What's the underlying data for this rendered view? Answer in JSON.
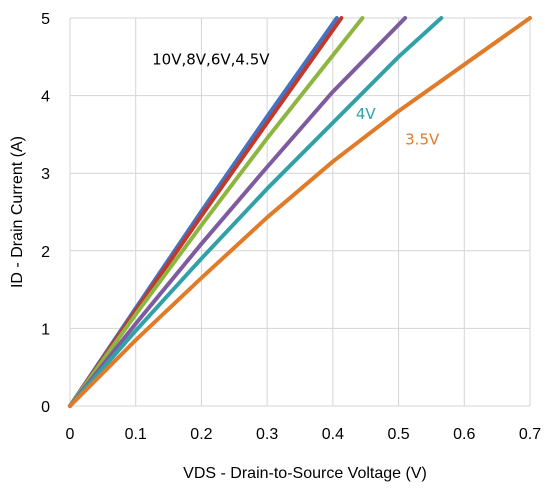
{
  "chart_data": {
    "type": "line",
    "title": "",
    "xlabel": "VDS - Drain-to-Source Voltage (V)",
    "ylabel": "ID - Drain Current (A)",
    "xlim": [
      0,
      0.7
    ],
    "ylim": [
      0,
      5
    ],
    "x_ticks": [
      "0",
      "0.1",
      "0.2",
      "0.3",
      "0.4",
      "0.5",
      "0.6",
      "0.7"
    ],
    "y_ticks": [
      "0",
      "1",
      "2",
      "3",
      "4",
      "5"
    ],
    "grid": true,
    "series": [
      {
        "color": "#4472C4",
        "x": [
          0,
          0.1,
          0.2,
          0.3,
          0.406
        ],
        "y": [
          0,
          1.26,
          2.51,
          3.73,
          5.0
        ]
      },
      {
        "color": "#C0392B",
        "x": [
          0,
          0.1,
          0.2,
          0.3,
          0.413
        ],
        "y": [
          0,
          1.23,
          2.45,
          3.65,
          5.0
        ]
      },
      {
        "color": "#8DB641",
        "x": [
          0,
          0.1,
          0.2,
          0.3,
          0.445
        ],
        "y": [
          0,
          1.18,
          2.33,
          3.45,
          5.0
        ]
      },
      {
        "color": "#7E5B9E",
        "x": [
          0,
          0.1,
          0.2,
          0.3,
          0.4,
          0.51
        ],
        "y": [
          0,
          1.06,
          2.09,
          3.08,
          4.05,
          5.0
        ]
      },
      {
        "color": "#31A1A8",
        "x": [
          0,
          0.1,
          0.2,
          0.3,
          0.4,
          0.5,
          0.565
        ],
        "y": [
          0,
          0.97,
          1.9,
          2.8,
          3.65,
          4.5,
          5.0
        ]
      },
      {
        "color": "#E07B2A",
        "x": [
          0,
          0.1,
          0.2,
          0.3,
          0.4,
          0.5,
          0.6,
          0.7
        ],
        "y": [
          0,
          0.85,
          1.65,
          2.43,
          3.15,
          3.8,
          4.4,
          5.0
        ]
      }
    ],
    "annotations": [
      {
        "text": "10V,8V,6V,4.5V",
        "color": "#000000",
        "x": 0.125,
        "y": 4.4
      },
      {
        "text": "4V",
        "color": "#31A1A8",
        "x": 0.435,
        "y": 3.7
      },
      {
        "text": "3.5V",
        "color": "#E07B2A",
        "x": 0.51,
        "y": 3.37
      }
    ]
  }
}
